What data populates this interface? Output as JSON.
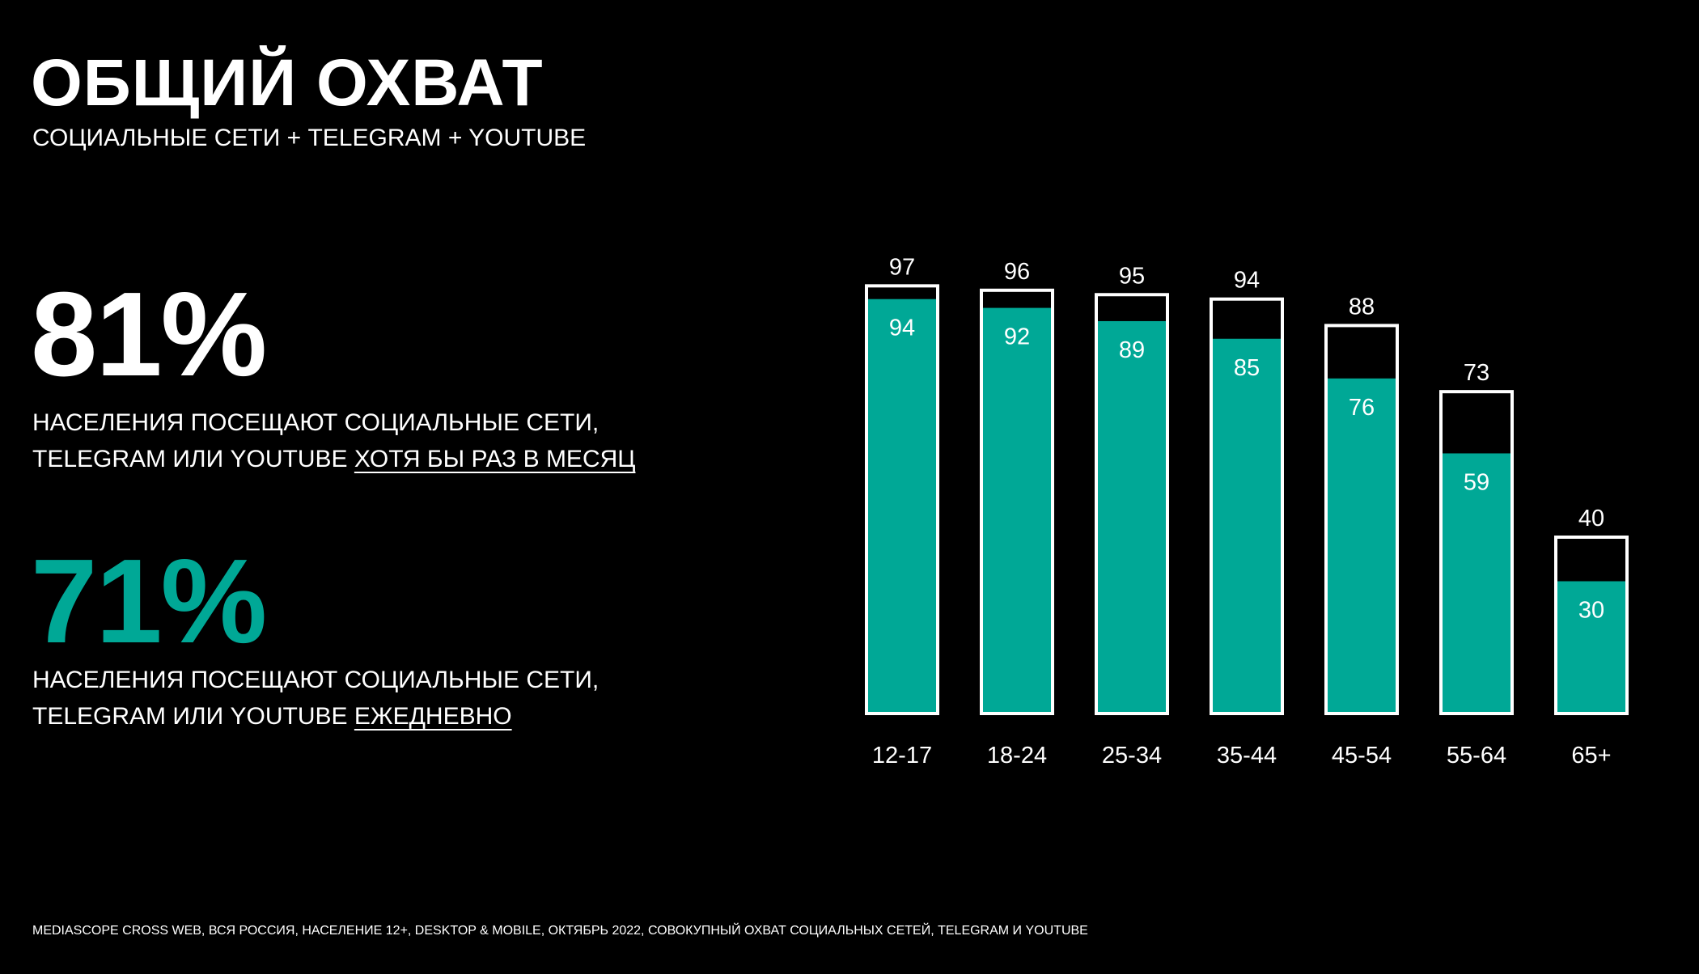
{
  "header": {
    "title": "ОБЩИЙ ОХВАТ",
    "subtitle": "СОЦИАЛЬНЫЕ СЕТИ + TELEGRAM + YOUTUBE"
  },
  "stats": [
    {
      "value": "81%",
      "line1": "НАСЕЛЕНИЯ ПОСЕЩАЮТ СОЦИАЛЬНЫЕ СЕТИ,",
      "line2_prefix": "TELEGRAM ИЛИ YOUTUBE ",
      "line2_underlined": "ХОТЯ БЫ РАЗ В МЕСЯЦ"
    },
    {
      "value": "71%",
      "line1": "НАСЕЛЕНИЯ ПОСЕЩАЮТ СОЦИАЛЬНЫЕ СЕТИ,",
      "line2_prefix": "TELEGRAM ИЛИ YOUTUBE ",
      "line2_underlined": "ЕЖЕДНЕВНО"
    }
  ],
  "footnote": "MEDIASCOPE CROSS WEB, ВСЯ РОССИЯ, НАСЕЛЕНИЕ 12+, DESKTOP & MOBILE, ОКТЯБРЬ 2022, СОВОКУПНЫЙ ОХВАТ СОЦИАЛЬНЫХ СЕТЕЙ, TELEGRAM И YOUTUBE",
  "colors": {
    "accent": "#00a896",
    "background": "#000000",
    "text": "#ffffff"
  },
  "chart_data": {
    "type": "bar",
    "categories": [
      "12-17",
      "18-24",
      "25-34",
      "35-44",
      "45-54",
      "55-64",
      "65+"
    ],
    "series": [
      {
        "values": [
          97,
          96,
          95,
          94,
          88,
          73,
          40
        ]
      },
      {
        "values": [
          94,
          92,
          89,
          85,
          76,
          59,
          30
        ]
      }
    ],
    "ylim": [
      0,
      100
    ],
    "grid": false,
    "legend": "none"
  }
}
